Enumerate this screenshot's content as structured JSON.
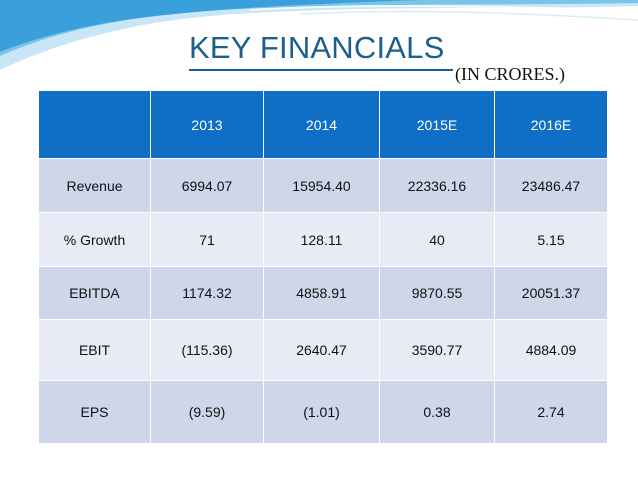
{
  "title": "KEY FINANCIALS",
  "subtitle": "(IN CRORES.)",
  "colors": {
    "header": "#0f6fc6",
    "row_dark": "#cfd6ea",
    "row_light": "#e8ebf5",
    "title": "#1e5f8a"
  },
  "table": {
    "headers": [
      "",
      "2013",
      "2014",
      "2015E",
      "2016E"
    ],
    "rows": [
      [
        "Revenue",
        "6994.07",
        "15954.40",
        "22336.16",
        "23486.47"
      ],
      [
        "% Growth",
        "71",
        "128.11",
        "40",
        "5.15"
      ],
      [
        "EBITDA",
        "1174.32",
        "4858.91",
        "9870.55",
        "20051.37"
      ],
      [
        "EBIT",
        "(115.36)",
        "2640.47",
        "3590.77",
        "4884.09"
      ],
      [
        "EPS",
        "(9.59)",
        "(1.01)",
        "0.38",
        "2.74"
      ]
    ]
  }
}
